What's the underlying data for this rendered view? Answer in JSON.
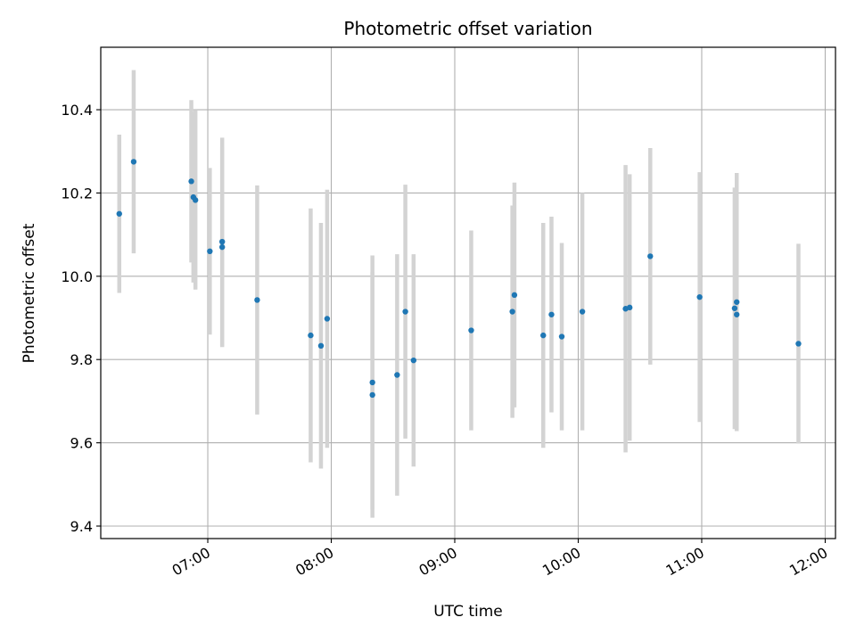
{
  "chart_data": {
    "type": "scatter",
    "title": "Photometric offset variation",
    "xlabel": "UTC time",
    "ylabel": "Photometric offset",
    "x_range": [
      "06:08",
      "12:05"
    ],
    "ylim": [
      9.37,
      10.55
    ],
    "grid": true,
    "x_ticks": [
      "07:00",
      "08:00",
      "09:00",
      "10:00",
      "11:00",
      "12:00"
    ],
    "y_ticks": [
      9.4,
      9.6,
      9.8,
      10.0,
      10.2,
      10.4
    ],
    "y_tick_labels": [
      "9.4",
      "9.6",
      "9.8",
      "10.0",
      "10.2",
      "10.4"
    ],
    "colors": {
      "points": "#1f77b4",
      "error_bars": "#d3d3d3",
      "grid": "#b0b0b0"
    },
    "points": [
      {
        "x": "06:17",
        "y": 10.15,
        "err": 0.19
      },
      {
        "x": "06:24",
        "y": 10.275,
        "err": 0.22
      },
      {
        "x": "06:52",
        "y": 10.228,
        "err": 0.195
      },
      {
        "x": "06:53",
        "y": 10.19,
        "err": 0.205
      },
      {
        "x": "06:54",
        "y": 10.183,
        "err": 0.215
      },
      {
        "x": "07:01",
        "y": 10.06,
        "err": 0.2
      },
      {
        "x": "07:07",
        "y": 10.07,
        "err": 0.24
      },
      {
        "x": "07:07",
        "y": 10.083,
        "err": 0.25
      },
      {
        "x": "07:24",
        "y": 9.943,
        "err": 0.275
      },
      {
        "x": "07:50",
        "y": 9.858,
        "err": 0.305
      },
      {
        "x": "07:55",
        "y": 9.833,
        "err": 0.295
      },
      {
        "x": "07:58",
        "y": 9.898,
        "err": 0.31
      },
      {
        "x": "08:20",
        "y": 9.745,
        "err": 0.305
      },
      {
        "x": "08:20",
        "y": 9.715,
        "err": 0.295
      },
      {
        "x": "08:32",
        "y": 9.763,
        "err": 0.29
      },
      {
        "x": "08:36",
        "y": 9.915,
        "err": 0.305
      },
      {
        "x": "08:40",
        "y": 9.798,
        "err": 0.255
      },
      {
        "x": "09:08",
        "y": 9.87,
        "err": 0.24
      },
      {
        "x": "09:28",
        "y": 9.915,
        "err": 0.255
      },
      {
        "x": "09:29",
        "y": 9.955,
        "err": 0.27
      },
      {
        "x": "09:43",
        "y": 9.858,
        "err": 0.27
      },
      {
        "x": "09:47",
        "y": 9.908,
        "err": 0.235
      },
      {
        "x": "09:52",
        "y": 9.855,
        "err": 0.225
      },
      {
        "x": "10:02",
        "y": 9.915,
        "err": 0.285
      },
      {
        "x": "10:23",
        "y": 9.922,
        "err": 0.345
      },
      {
        "x": "10:25",
        "y": 9.925,
        "err": 0.32
      },
      {
        "x": "10:35",
        "y": 10.048,
        "err": 0.26
      },
      {
        "x": "10:59",
        "y": 9.95,
        "err": 0.3
      },
      {
        "x": "11:16",
        "y": 9.923,
        "err": 0.29
      },
      {
        "x": "11:17",
        "y": 9.908,
        "err": 0.28
      },
      {
        "x": "11:17",
        "y": 9.938,
        "err": 0.31
      },
      {
        "x": "11:47",
        "y": 9.838,
        "err": 0.24
      }
    ]
  }
}
